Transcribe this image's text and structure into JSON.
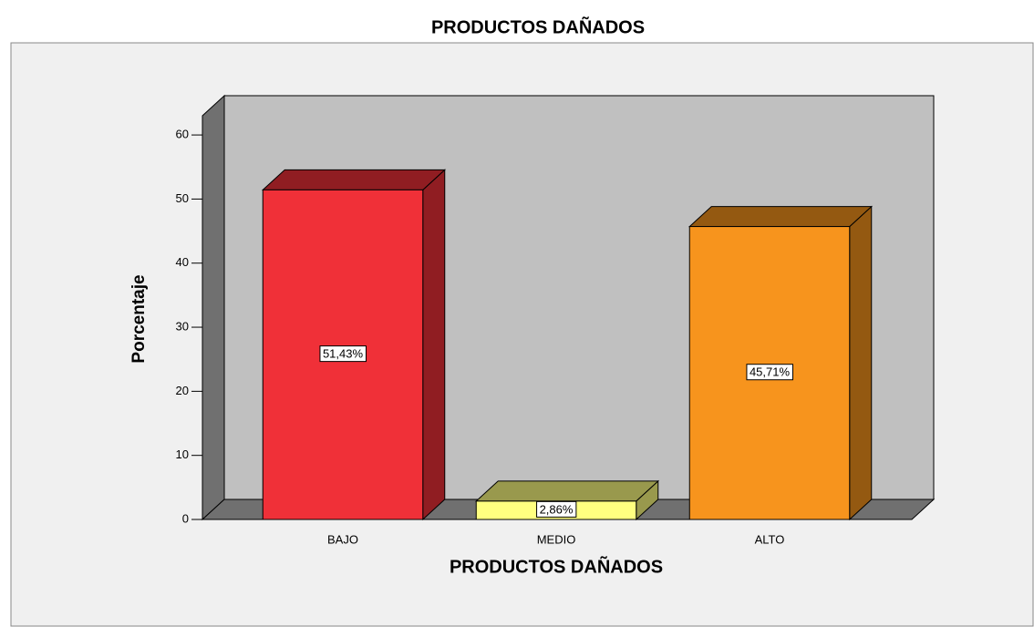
{
  "chart_data": {
    "type": "bar3d",
    "title": "PRODUCTOS DAÑADOS",
    "x_label": "PRODUCTOS DAÑADOS",
    "y_label": "Porcentaje",
    "categories": [
      "BAJO",
      "MEDIO",
      "ALTO"
    ],
    "values": [
      51.43,
      2.86,
      45.71
    ],
    "value_labels": [
      "51,43%",
      "2,86%",
      "45,71%"
    ],
    "colors": [
      "#f03038",
      "#ffff80",
      "#f7941d"
    ],
    "ylim": [
      0,
      63
    ],
    "yticks": [
      0,
      10,
      20,
      30,
      40,
      50,
      60
    ]
  }
}
